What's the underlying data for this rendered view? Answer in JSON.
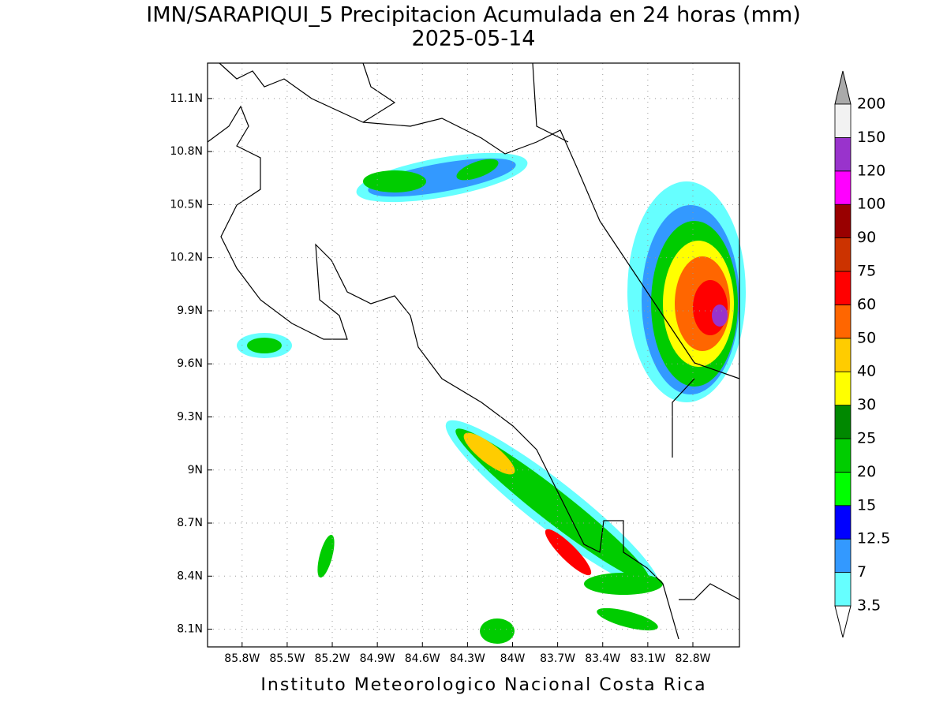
{
  "title": "IMN/SARAPIQUI_5 Precipitacion Acumulada en 24 horas (mm)",
  "date": "2025-05-14",
  "lat_range": [
    8.0,
    11.3
  ],
  "lon_range": [
    -86.03,
    -82.49
  ],
  "lat_ticks": [
    {
      "value": 11.1,
      "label": "11.1N"
    },
    {
      "value": 10.8,
      "label": "10.8N"
    },
    {
      "value": 10.5,
      "label": "10.5N"
    },
    {
      "value": 10.2,
      "label": "10.2N"
    },
    {
      "value": 9.9,
      "label": "9.9N"
    },
    {
      "value": 9.6,
      "label": "9.6N"
    },
    {
      "value": 9.3,
      "label": "9.3N"
    },
    {
      "value": 9,
      "label": "9N"
    },
    {
      "value": 8.7,
      "label": "8.7N"
    },
    {
      "value": 8.4,
      "label": "8.4N"
    },
    {
      "value": 8.1,
      "label": "8.1N"
    }
  ],
  "lon_ticks": [
    {
      "value": -85.8,
      "label": "85.8W"
    },
    {
      "value": -85.5,
      "label": "85.5W"
    },
    {
      "value": -85.2,
      "label": "85.2W"
    },
    {
      "value": -84.9,
      "label": "84.9W"
    },
    {
      "value": -84.6,
      "label": "84.6W"
    },
    {
      "value": -84.3,
      "label": "84.3W"
    },
    {
      "value": -84,
      "label": "84W"
    },
    {
      "value": -83.7,
      "label": "83.7W"
    },
    {
      "value": -83.4,
      "label": "83.4W"
    },
    {
      "value": -83.1,
      "label": "83.1W"
    },
    {
      "value": -82.8,
      "label": "82.8W"
    }
  ],
  "grid": true,
  "colorbar": {
    "levels": [
      3.5,
      7,
      12.5,
      15,
      20,
      25,
      30,
      40,
      50,
      60,
      75,
      90,
      100,
      120,
      150,
      200
    ],
    "colors": [
      "#66ffff",
      "#3399ff",
      "#0000ff",
      "#00ff00",
      "#00cc00",
      "#008800",
      "#ffff00",
      "#ffcc00",
      "#ff6600",
      "#ff0000",
      "#cc3300",
      "#990000",
      "#ff00ff",
      "#9933cc",
      "#f2f2f2"
    ],
    "over_color": "#aaaaaa",
    "under_color": "#ffffff"
  },
  "footer": "Instituto Meteorologico Nacional Costa Rica"
}
